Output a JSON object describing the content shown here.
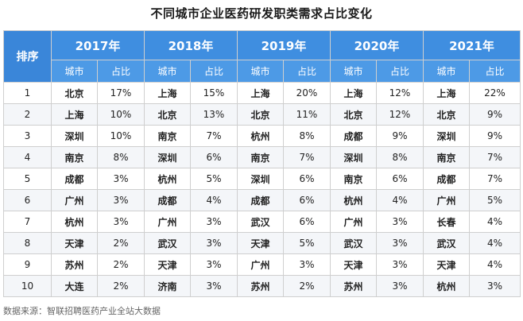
{
  "title": "不同城市企业医药研发职类需求占比变化",
  "rank_header": "排序",
  "city_label": "城市",
  "share_label": "占比",
  "years": [
    "2017年",
    "2018年",
    "2019年",
    "2020年",
    "2021年"
  ],
  "rows": [
    {
      "rank": "1",
      "cells": [
        [
          "北京",
          "17%"
        ],
        [
          "上海",
          "15%"
        ],
        [
          "上海",
          "20%"
        ],
        [
          "上海",
          "12%"
        ],
        [
          "上海",
          "22%"
        ]
      ]
    },
    {
      "rank": "2",
      "cells": [
        [
          "上海",
          "10%"
        ],
        [
          "北京",
          "13%"
        ],
        [
          "北京",
          "11%"
        ],
        [
          "北京",
          "12%"
        ],
        [
          "北京",
          "9%"
        ]
      ]
    },
    {
      "rank": "3",
      "cells": [
        [
          "深圳",
          "10%"
        ],
        [
          "南京",
          "7%"
        ],
        [
          "杭州",
          "8%"
        ],
        [
          "成都",
          "9%"
        ],
        [
          "深圳",
          "9%"
        ]
      ]
    },
    {
      "rank": "4",
      "cells": [
        [
          "南京",
          "8%"
        ],
        [
          "深圳",
          "6%"
        ],
        [
          "南京",
          "7%"
        ],
        [
          "深圳",
          "8%"
        ],
        [
          "南京",
          "7%"
        ]
      ]
    },
    {
      "rank": "5",
      "cells": [
        [
          "成都",
          "3%"
        ],
        [
          "杭州",
          "5%"
        ],
        [
          "深圳",
          "6%"
        ],
        [
          "南京",
          "6%"
        ],
        [
          "成都",
          "7%"
        ]
      ]
    },
    {
      "rank": "6",
      "cells": [
        [
          "广州",
          "3%"
        ],
        [
          "成都",
          "4%"
        ],
        [
          "成都",
          "6%"
        ],
        [
          "杭州",
          "4%"
        ],
        [
          "广州",
          "5%"
        ]
      ]
    },
    {
      "rank": "7",
      "cells": [
        [
          "杭州",
          "3%"
        ],
        [
          "广州",
          "3%"
        ],
        [
          "武汉",
          "6%"
        ],
        [
          "广州",
          "3%"
        ],
        [
          "长春",
          "4%"
        ]
      ]
    },
    {
      "rank": "8",
      "cells": [
        [
          "天津",
          "2%"
        ],
        [
          "武汉",
          "3%"
        ],
        [
          "天津",
          "5%"
        ],
        [
          "武汉",
          "3%"
        ],
        [
          "武汉",
          "4%"
        ]
      ]
    },
    {
      "rank": "9",
      "cells": [
        [
          "苏州",
          "2%"
        ],
        [
          "天津",
          "3%"
        ],
        [
          "广州",
          "3%"
        ],
        [
          "天津",
          "3%"
        ],
        [
          "天津",
          "4%"
        ]
      ]
    },
    {
      "rank": "10",
      "cells": [
        [
          "大连",
          "2%"
        ],
        [
          "济南",
          "3%"
        ],
        [
          "苏州",
          "2%"
        ],
        [
          "苏州",
          "3%"
        ],
        [
          "杭州",
          "3%"
        ]
      ]
    }
  ],
  "source": "数据来源：智联招聘医药产业全站大数据",
  "colors": {
    "header_bg": "#3f8ee0",
    "stripe_bg": "#f4f6f9"
  }
}
